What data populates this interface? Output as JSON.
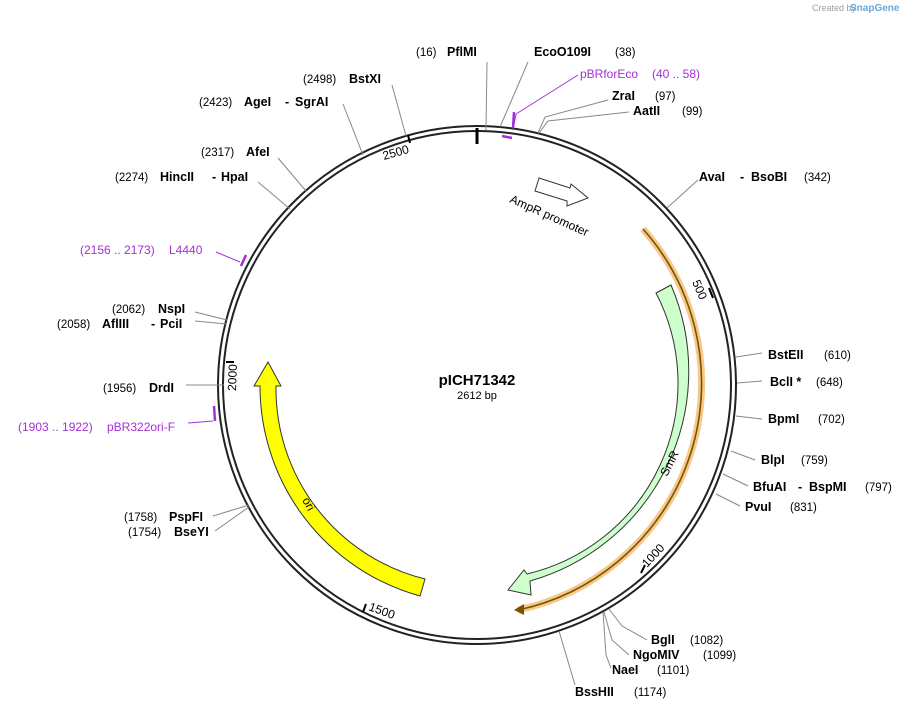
{
  "credit": {
    "created_by": "Created by",
    "brand": "SnapGene"
  },
  "plasmid": {
    "name": "pICH71342",
    "length": "2612 bp",
    "bp": 2612
  },
  "ticks": [
    "500",
    "1000",
    "1500",
    "2000",
    "2500"
  ],
  "sites": [
    {
      "id": "pflmi",
      "name": "PflMI",
      "pos": "(16)"
    },
    {
      "id": "ecoo109i",
      "name": "EcoO109I",
      "pos": "(38)"
    },
    {
      "id": "zrai",
      "name": "ZraI",
      "pos": "(97)"
    },
    {
      "id": "aatii",
      "name": "AatII",
      "pos": "(99)"
    },
    {
      "id": "avai",
      "name": "AvaI",
      "name2": "BsoBI",
      "pos": "(342)"
    },
    {
      "id": "bsteii",
      "name": "BstEII",
      "pos": "(610)"
    },
    {
      "id": "bcli",
      "name": "BclI *",
      "pos": "(648)"
    },
    {
      "id": "bpmi",
      "name": "BpmI",
      "pos": "(702)"
    },
    {
      "id": "blpi",
      "name": "BlpI",
      "pos": "(759)"
    },
    {
      "id": "bfuai",
      "name": "BfuAI",
      "name2": "BspMI",
      "pos": "(797)"
    },
    {
      "id": "pvui",
      "name": "PvuI",
      "pos": "(831)"
    },
    {
      "id": "bgli",
      "name": "BglI",
      "pos": "(1082)"
    },
    {
      "id": "ngomiv",
      "name": "NgoMIV",
      "pos": "(1099)"
    },
    {
      "id": "naei",
      "name": "NaeI",
      "pos": "(1101)"
    },
    {
      "id": "bsshii",
      "name": "BssHII",
      "pos": "(1174)"
    },
    {
      "id": "bseyi",
      "name": "BseYI",
      "pos": "(1754)"
    },
    {
      "id": "pspfi",
      "name": "PspFI",
      "pos": "(1758)"
    },
    {
      "id": "drdi",
      "name": "DrdI",
      "pos": "(1956)"
    },
    {
      "id": "afliii",
      "name": "AflIII",
      "name2": "PciI",
      "pos": "(2058)"
    },
    {
      "id": "nspi",
      "name": "NspI",
      "pos": "(2062)"
    },
    {
      "id": "hincii",
      "name": "HincII",
      "name2": "HpaI",
      "pos": "(2274)"
    },
    {
      "id": "afei",
      "name": "AfeI",
      "pos": "(2317)"
    },
    {
      "id": "agei",
      "name": "AgeI",
      "name2": "SgrAI",
      "pos": "(2423)"
    },
    {
      "id": "bstxi",
      "name": "BstXI",
      "pos": "(2498)"
    }
  ],
  "primers": [
    {
      "id": "pbrforeco",
      "name": "pBRforEco",
      "range": "(40 .. 58)"
    },
    {
      "id": "l4440",
      "name": "L4440",
      "range": "(2156 .. 2173)"
    },
    {
      "id": "pbr322ori",
      "name": "pBR322ori-F",
      "range": "(1903 .. 1922)"
    }
  ],
  "features": [
    {
      "id": "ampr-promoter",
      "name": "AmpR promoter",
      "color": "#ffffff"
    },
    {
      "id": "smr",
      "name": "SmR",
      "color": "#ccffcc"
    },
    {
      "id": "ori",
      "name": "ori",
      "color": "#ffff00"
    }
  ],
  "colors": {
    "primer": "#a330d6",
    "orf": "#f6c98a",
    "orf_line": "#7a5200"
  }
}
